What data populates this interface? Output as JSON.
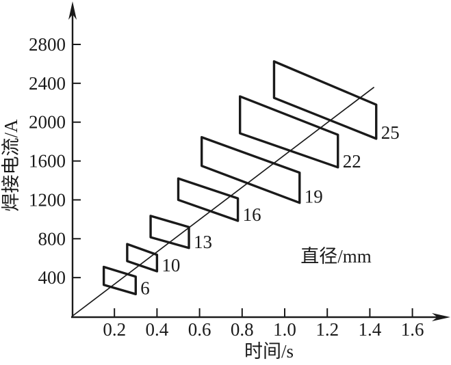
{
  "chart": {
    "y_axis_label": "焊接电流/A",
    "x_axis_label": "时间/s",
    "annotation": "直径/mm",
    "x_ticks": [
      "0.2",
      "0.4",
      "0.6",
      "0.8",
      "1.0",
      "1.2",
      "1.4",
      "1.6"
    ],
    "y_ticks": [
      "400",
      "800",
      "1200",
      "1600",
      "2000",
      "2400",
      "2800"
    ]
  },
  "chart_data": {
    "type": "area",
    "title": "",
    "xlabel": "时间/s",
    "ylabel": "焊接电流/A",
    "annotation": "直径/mm",
    "xlim": [
      0,
      1.72
    ],
    "ylim": [
      0,
      3000
    ],
    "x_tick_values": [
      0.2,
      0.4,
      0.6,
      0.8,
      1.0,
      1.2,
      1.4,
      1.6
    ],
    "y_tick_values": [
      400,
      800,
      1200,
      1600,
      2000,
      2400,
      2800
    ],
    "grid": false,
    "trend_line": {
      "from_t": 0,
      "from_current": 0,
      "to_t": 1.42,
      "to_current": 2360
    },
    "regions_note": "parallelogram operating zones; label = electrode diameter in mm; t in seconds, current in A",
    "regions": [
      {
        "label": "6",
        "t": [
          0.15,
          0.3
        ],
        "current_top": [
          510,
          410
        ],
        "current_bottom": [
          325,
          230
        ]
      },
      {
        "label": "10",
        "t": [
          0.26,
          0.4
        ],
        "current_top": [
          745,
          635
        ],
        "current_bottom": [
          570,
          465
        ]
      },
      {
        "label": "13",
        "t": [
          0.37,
          0.55
        ],
        "current_top": [
          1035,
          920
        ],
        "current_bottom": [
          815,
          705
        ]
      },
      {
        "label": "16",
        "t": [
          0.5,
          0.78
        ],
        "current_top": [
          1420,
          1215
        ],
        "current_bottom": [
          1200,
          985
        ]
      },
      {
        "label": "19",
        "t": [
          0.61,
          1.07
        ],
        "current_top": [
          1845,
          1480
        ],
        "current_bottom": [
          1550,
          1170
        ]
      },
      {
        "label": "22",
        "t": [
          0.79,
          1.25
        ],
        "current_top": [
          2265,
          1870
        ],
        "current_bottom": [
          1885,
          1535
        ]
      },
      {
        "label": "25",
        "t": [
          0.95,
          1.43
        ],
        "current_top": [
          2625,
          2180
        ],
        "current_bottom": [
          2250,
          1830
        ]
      }
    ]
  },
  "colors": {
    "ink": "#1a1a1a",
    "background": "#ffffff"
  }
}
